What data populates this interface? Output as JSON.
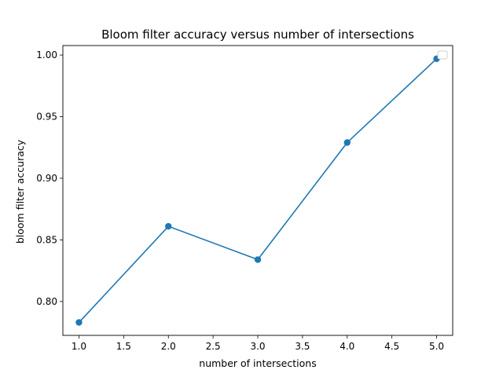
{
  "chart_data": {
    "type": "line",
    "title": "Bloom filter accuracy versus number of intersections",
    "xlabel": "number of intersections",
    "ylabel": "bloom filter accuracy",
    "x": [
      1.0,
      2.0,
      3.0,
      4.0,
      5.0
    ],
    "series": [
      {
        "values": [
          0.783,
          0.861,
          0.834,
          0.929,
          0.997
        ],
        "color": "#1f77b4",
        "marker": "circle"
      }
    ],
    "xlim": [
      0.82,
      5.18
    ],
    "ylim": [
      0.7725,
      1.0077
    ],
    "x_ticks": [
      "1.0",
      "1.5",
      "2.0",
      "2.5",
      "3.0",
      "3.5",
      "4.0",
      "4.5",
      "5.0"
    ],
    "y_ticks": [
      "0.80",
      "0.85",
      "0.90",
      "0.95",
      "1.00"
    ],
    "grid": false,
    "legend": {
      "placement": "top-right",
      "entries": []
    }
  }
}
